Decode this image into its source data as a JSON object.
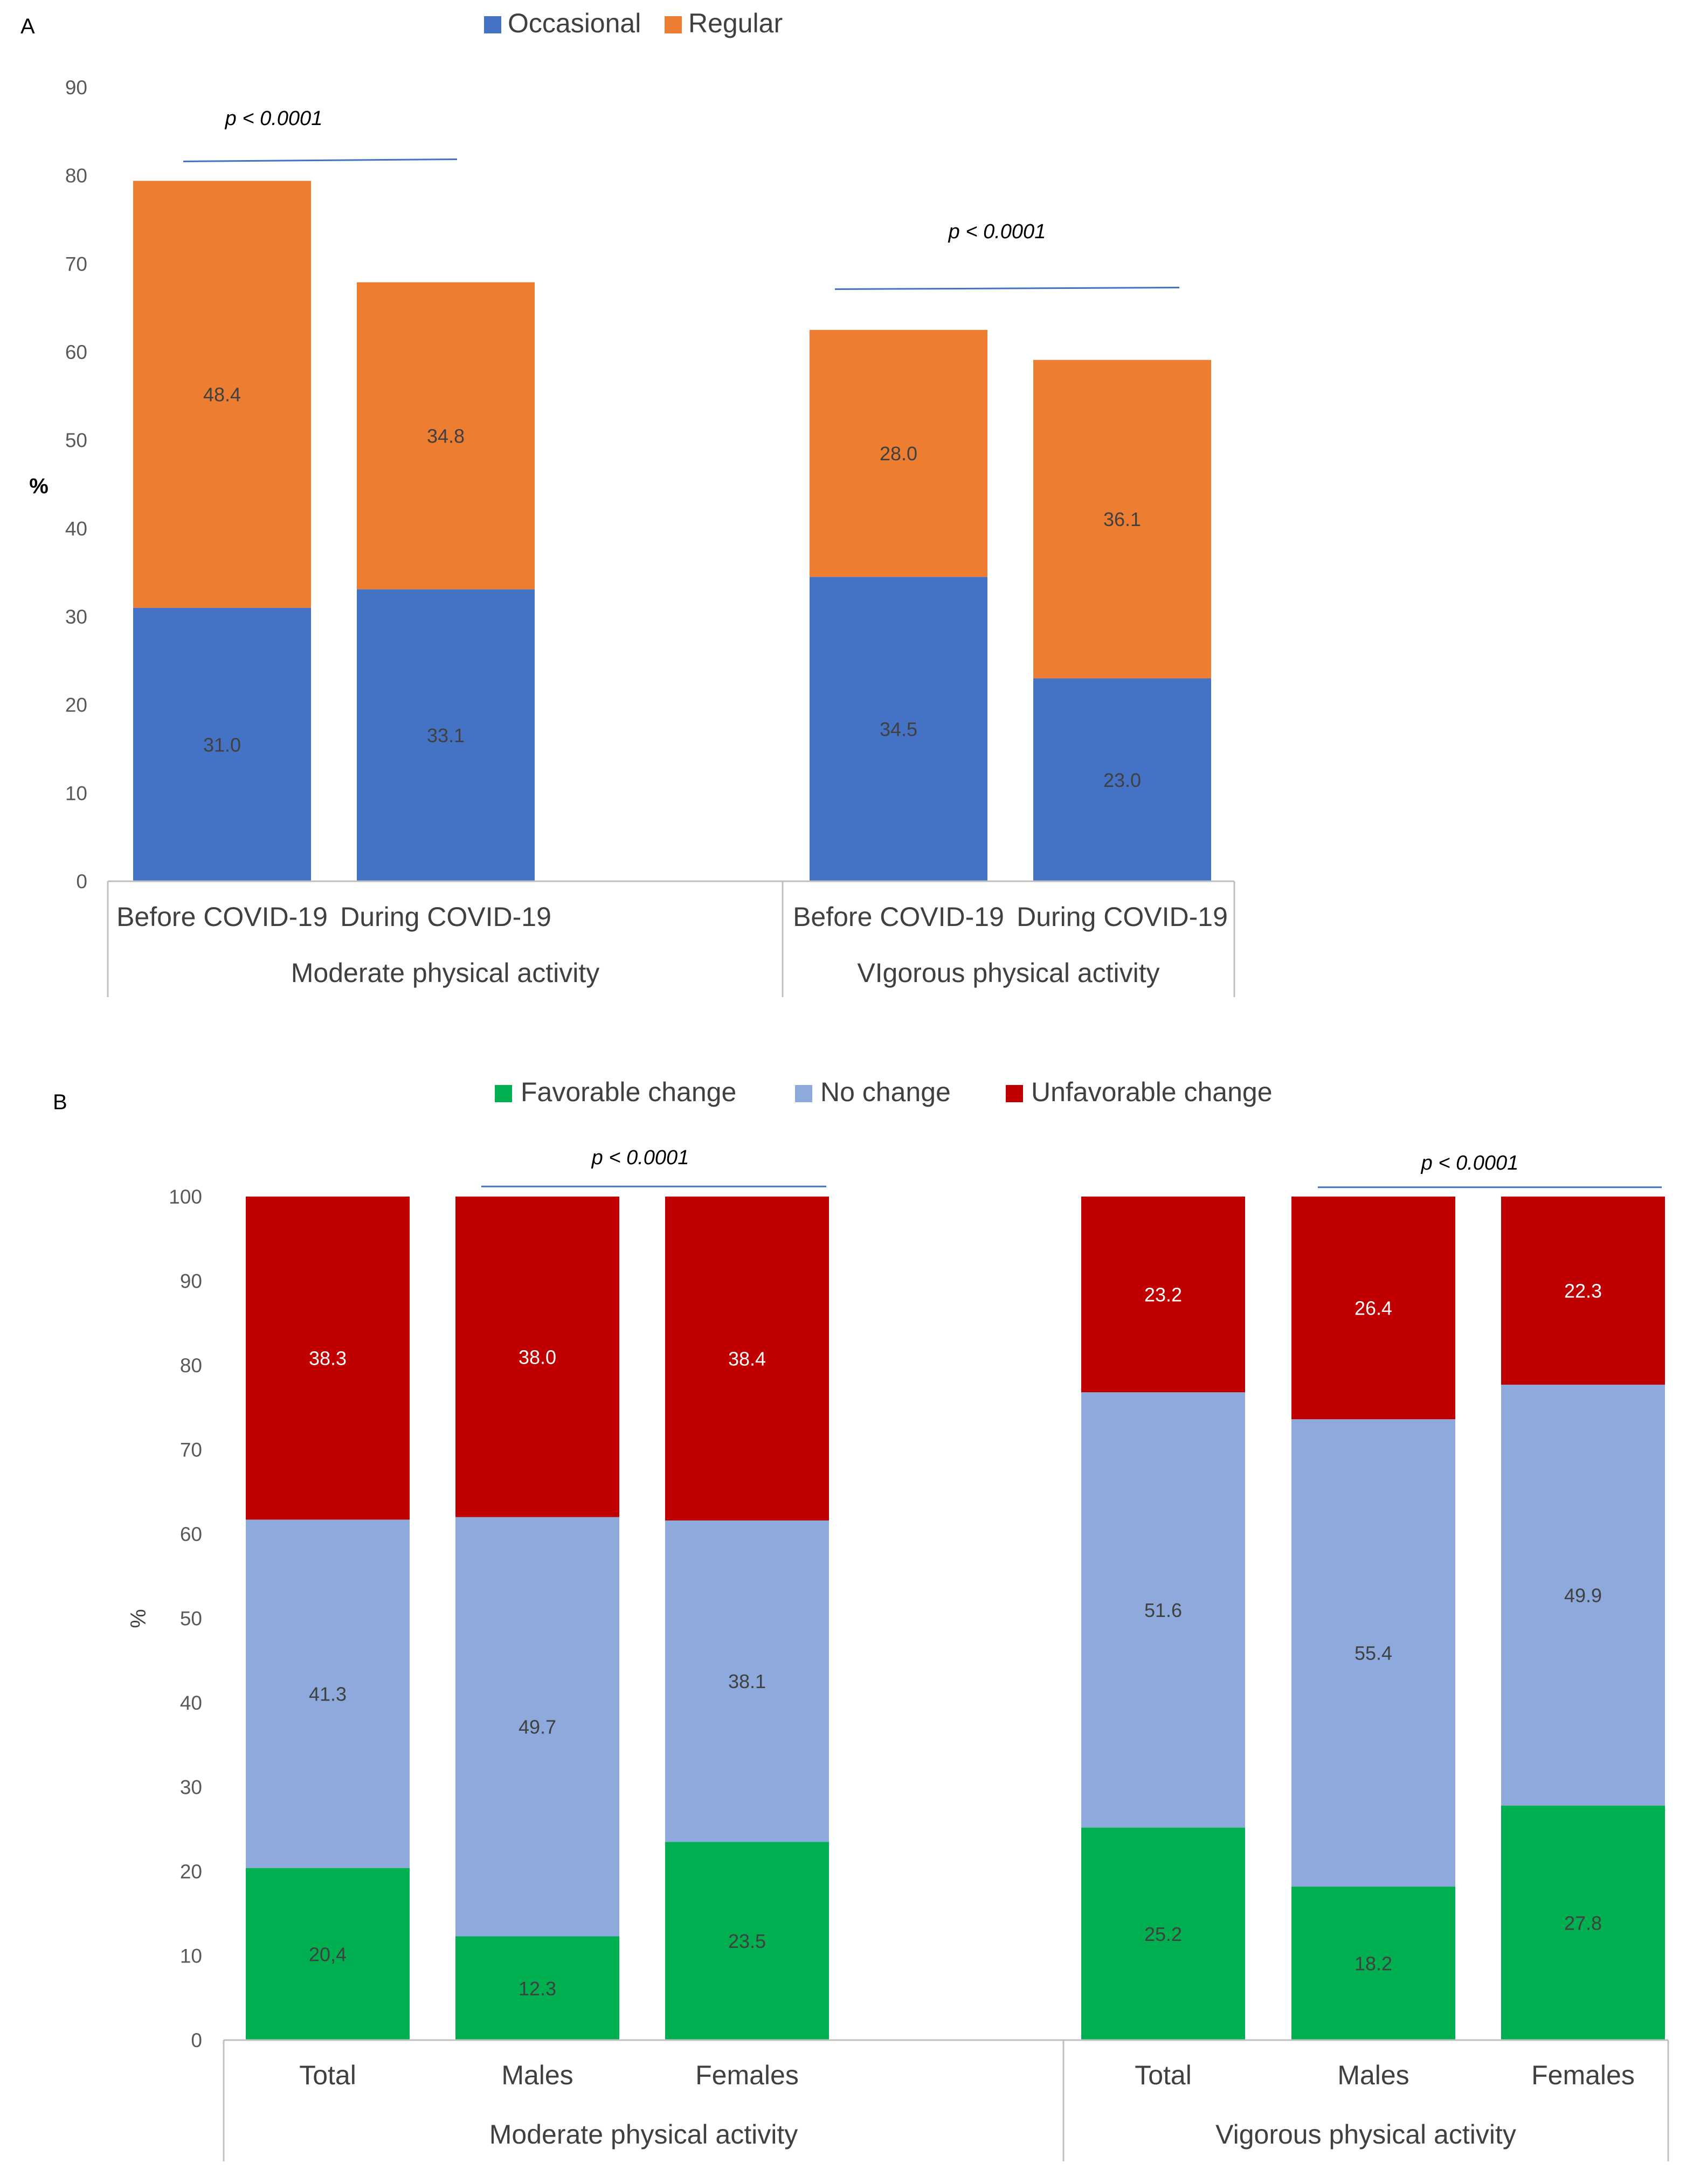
{
  "chart_data": [
    {
      "panel": "A",
      "type": "bar",
      "stacked": true,
      "ylabel": "%",
      "ylim": [
        0,
        90
      ],
      "yticks": [
        "0",
        "10",
        "20",
        "30",
        "40",
        "50",
        "60",
        "70",
        "80",
        "90"
      ],
      "legend_position": "top-center",
      "categories": [
        "Before COVID-19",
        "During COVID-19",
        "Before COVID-19",
        "During COVID-19"
      ],
      "groups": [
        {
          "label": "Moderate physical activity",
          "categories": [
            0,
            1
          ]
        },
        {
          "label": "VIgorous physical activity",
          "categories": [
            2,
            3
          ]
        }
      ],
      "series": [
        {
          "name": "Occasional",
          "color": "#4472C4",
          "label_color": "#404040",
          "values": [
            31.0,
            33.1,
            34.5,
            23.0
          ],
          "labels": [
            "31.0",
            "33.1",
            "34.5",
            "23.0"
          ]
        },
        {
          "name": "Regular",
          "color": "#ED7D31",
          "label_color": "#404040",
          "values": [
            48.4,
            34.8,
            28.0,
            36.1
          ],
          "labels": [
            "48.4",
            "34.8",
            "28.0",
            "36.1"
          ]
        }
      ],
      "annotations": [
        {
          "text": "p < 0.0001",
          "span": [
            0,
            1
          ],
          "value": 81.6
        },
        {
          "text": "p < 0.0001",
          "span": [
            2,
            3
          ],
          "value": 67.3
        }
      ]
    },
    {
      "panel": "B",
      "type": "bar",
      "stacked": true,
      "ylabel": "%",
      "ylim": [
        0,
        100
      ],
      "yticks": [
        "0",
        "10",
        "20",
        "30",
        "40",
        "50",
        "60",
        "70",
        "80",
        "90",
        "100"
      ],
      "legend_position": "top-center",
      "categories": [
        "Total",
        "Males",
        "Females",
        "Total",
        "Males",
        "Females"
      ],
      "groups": [
        {
          "label": "Moderate physical activity",
          "categories": [
            0,
            1,
            2
          ]
        },
        {
          "label": "Vigorous physical activity",
          "categories": [
            3,
            4,
            5
          ]
        }
      ],
      "series": [
        {
          "name": "Favorable change",
          "color": "#00B050",
          "label_color": "#404040",
          "values": [
            20.4,
            12.3,
            23.5,
            25.2,
            18.2,
            27.8
          ],
          "labels": [
            "20,4",
            "12.3",
            "23.5",
            "25.2",
            "18.2",
            "27.8"
          ]
        },
        {
          "name": "No change",
          "color": "#8EA9DB",
          "label_color": "#404040",
          "values": [
            41.3,
            49.7,
            38.1,
            51.6,
            55.4,
            49.9
          ],
          "labels": [
            "41.3",
            "49.7",
            "38.1",
            "51.6",
            "55.4",
            "49.9"
          ]
        },
        {
          "name": "Unfavorable change",
          "color": "#C00000",
          "label_color": "#FFFFFF",
          "values": [
            38.3,
            38.0,
            38.4,
            23.2,
            26.4,
            22.3
          ],
          "labels": [
            "38.3",
            "38.0",
            "38.4",
            "23.2",
            "26.4",
            "22.3"
          ]
        }
      ],
      "annotations": [
        {
          "text": "p < 0.0001",
          "span": [
            1,
            2
          ],
          "value": 101.2
        },
        {
          "text": "p < 0.0001",
          "span": [
            4,
            5
          ],
          "value": 101.1
        }
      ]
    }
  ]
}
